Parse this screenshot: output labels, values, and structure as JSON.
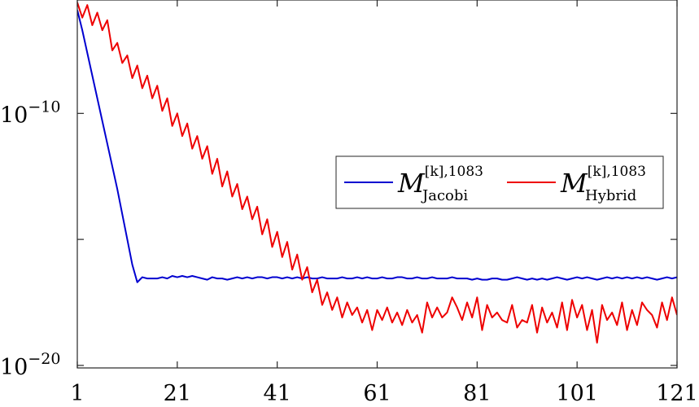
{
  "chart_data": {
    "type": "line",
    "title": "",
    "xlabel": "",
    "ylabel": "",
    "xlim": [
      1,
      121
    ],
    "ylim_exponent": [
      -20.1,
      -5.5
    ],
    "yscale": "log",
    "grid": false,
    "legend_position": "right",
    "x_ticks": [
      "1",
      "21",
      "41",
      "61",
      "81",
      "101",
      "121"
    ],
    "y_ticks": [
      {
        "base": "10",
        "exp": "−10",
        "exp_value": -10
      },
      {
        "base": "10",
        "exp": "−20",
        "exp_value": -20
      }
    ],
    "legend": [
      {
        "main": "M",
        "sup": "[k],1083",
        "sub": "Jacobi"
      },
      {
        "main": "M",
        "sup": "[k],1083",
        "sub": "Hybrid"
      }
    ],
    "series": [
      {
        "key": "jacobi",
        "color": "#0000d0",
        "x": [
          1,
          2,
          3,
          4,
          5,
          6,
          7,
          8,
          9,
          10,
          11,
          12,
          13,
          14,
          15,
          16,
          17,
          18,
          19,
          20,
          21,
          22,
          23,
          24,
          25,
          26,
          27,
          28,
          29,
          30,
          31,
          32,
          33,
          34,
          35,
          36,
          37,
          38,
          39,
          40,
          41,
          42,
          43,
          44,
          45,
          46,
          47,
          48,
          49,
          50,
          51,
          52,
          53,
          54,
          55,
          56,
          57,
          58,
          59,
          60,
          61,
          62,
          63,
          64,
          65,
          66,
          67,
          68,
          69,
          70,
          71,
          72,
          73,
          74,
          75,
          76,
          77,
          78,
          79,
          80,
          81,
          82,
          83,
          84,
          85,
          86,
          87,
          88,
          89,
          90,
          91,
          92,
          93,
          94,
          95,
          96,
          97,
          98,
          99,
          100,
          101,
          102,
          103,
          104,
          105,
          106,
          107,
          108,
          109,
          110,
          111,
          112,
          113,
          114,
          115,
          116,
          117,
          118,
          119,
          120,
          121
        ],
        "log10_values": [
          -5.9,
          -6.7,
          -7.6,
          -8.5,
          -9.4,
          -10.3,
          -11.2,
          -12.1,
          -13.0,
          -14.0,
          -15.0,
          -16.0,
          -16.7,
          -16.5,
          -16.55,
          -16.55,
          -16.55,
          -16.5,
          -16.55,
          -16.45,
          -16.5,
          -16.45,
          -16.5,
          -16.45,
          -16.5,
          -16.55,
          -16.6,
          -16.5,
          -16.55,
          -16.55,
          -16.6,
          -16.55,
          -16.5,
          -16.55,
          -16.5,
          -16.55,
          -16.5,
          -16.5,
          -16.55,
          -16.5,
          -16.5,
          -16.55,
          -16.5,
          -16.55,
          -16.5,
          -16.55,
          -16.5,
          -16.55,
          -16.55,
          -16.5,
          -16.55,
          -16.55,
          -16.55,
          -16.5,
          -16.55,
          -16.55,
          -16.5,
          -16.55,
          -16.5,
          -16.55,
          -16.55,
          -16.5,
          -16.55,
          -16.55,
          -16.5,
          -16.5,
          -16.55,
          -16.55,
          -16.5,
          -16.55,
          -16.55,
          -16.5,
          -16.55,
          -16.55,
          -16.55,
          -16.5,
          -16.55,
          -16.55,
          -16.55,
          -16.6,
          -16.55,
          -16.6,
          -16.6,
          -16.55,
          -16.55,
          -16.6,
          -16.6,
          -16.55,
          -16.5,
          -16.55,
          -16.6,
          -16.55,
          -16.6,
          -16.55,
          -16.6,
          -16.55,
          -16.5,
          -16.55,
          -16.6,
          -16.55,
          -16.5,
          -16.55,
          -16.5,
          -16.55,
          -16.6,
          -16.55,
          -16.5,
          -16.55,
          -16.5,
          -16.55,
          -16.5,
          -16.55,
          -16.5,
          -16.55,
          -16.5,
          -16.55,
          -16.6,
          -16.55,
          -16.5,
          -16.55,
          -16.5
        ]
      },
      {
        "key": "hybrid",
        "color": "#ee0000",
        "x": [
          1,
          2,
          3,
          4,
          5,
          6,
          7,
          8,
          9,
          10,
          11,
          12,
          13,
          14,
          15,
          16,
          17,
          18,
          19,
          20,
          21,
          22,
          23,
          24,
          25,
          26,
          27,
          28,
          29,
          30,
          31,
          32,
          33,
          34,
          35,
          36,
          37,
          38,
          39,
          40,
          41,
          42,
          43,
          44,
          45,
          46,
          47,
          48,
          49,
          50,
          51,
          52,
          53,
          54,
          55,
          56,
          57,
          58,
          59,
          60,
          61,
          62,
          63,
          64,
          65,
          66,
          67,
          68,
          69,
          70,
          71,
          72,
          73,
          74,
          75,
          76,
          77,
          78,
          79,
          80,
          81,
          82,
          83,
          84,
          85,
          86,
          87,
          88,
          89,
          90,
          91,
          92,
          93,
          94,
          95,
          96,
          97,
          98,
          99,
          100,
          101,
          102,
          103,
          104,
          105,
          106,
          107,
          108,
          109,
          110,
          111,
          112,
          113,
          114,
          115,
          116,
          117,
          118,
          119,
          120,
          121
        ],
        "log10_values": [
          -5.6,
          -6.2,
          -5.7,
          -6.5,
          -6.0,
          -6.7,
          -6.3,
          -7.5,
          -7.2,
          -8.0,
          -7.7,
          -8.6,
          -8.1,
          -9.0,
          -8.5,
          -9.4,
          -8.9,
          -9.9,
          -9.4,
          -10.5,
          -10.0,
          -10.9,
          -10.4,
          -11.4,
          -10.9,
          -11.8,
          -11.3,
          -12.4,
          -11.8,
          -12.9,
          -12.3,
          -13.3,
          -12.8,
          -13.8,
          -13.3,
          -14.2,
          -13.7,
          -14.8,
          -14.2,
          -15.3,
          -14.7,
          -15.7,
          -15.1,
          -16.2,
          -15.6,
          -16.6,
          -16.1,
          -17.1,
          -16.6,
          -17.6,
          -17.1,
          -17.8,
          -17.3,
          -18.1,
          -17.5,
          -18.0,
          -17.7,
          -18.3,
          -17.8,
          -18.6,
          -17.8,
          -18.2,
          -17.7,
          -18.3,
          -17.9,
          -18.4,
          -17.8,
          -18.3,
          -18.0,
          -18.7,
          -17.5,
          -18.1,
          -17.7,
          -18.1,
          -17.9,
          -17.3,
          -17.7,
          -18.2,
          -17.5,
          -18.1,
          -17.3,
          -18.6,
          -17.6,
          -18.1,
          -17.9,
          -18.2,
          -18.3,
          -17.6,
          -18.5,
          -18.2,
          -18.3,
          -17.6,
          -18.7,
          -17.7,
          -18.3,
          -17.9,
          -18.5,
          -17.5,
          -18.6,
          -17.4,
          -18.1,
          -17.6,
          -18.6,
          -17.8,
          -19.1,
          -17.6,
          -18.2,
          -17.9,
          -18.4,
          -17.5,
          -18.6,
          -17.8,
          -18.4,
          -17.5,
          -17.8,
          -18.0,
          -18.5,
          -17.5,
          -18.2,
          -17.3,
          -18.0
        ]
      }
    ]
  }
}
